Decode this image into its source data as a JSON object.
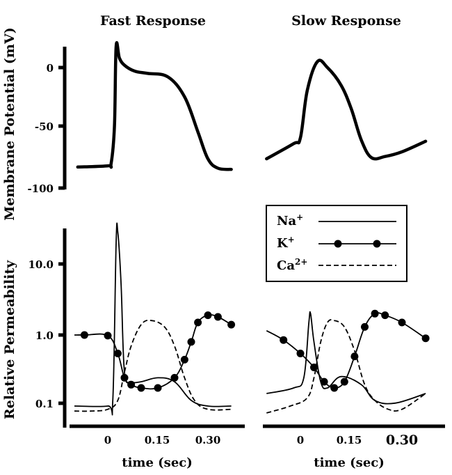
{
  "titles": {
    "left": "Fast Response",
    "right": "Slow Response"
  },
  "ylabels": {
    "top": "Membrane Potential (mV)",
    "bottom": "Relative Permeability"
  },
  "legend": {
    "na": "Na",
    "na_sup": "+",
    "k": "K",
    "k_sup": "+",
    "ca": "Ca",
    "ca_sup": "2+"
  },
  "chart_data": [
    {
      "type": "line",
      "title": "Fast Response",
      "ylabel": "Membrane Potential (mV)",
      "ylim": [
        -100,
        20
      ],
      "yticks": [
        "0",
        "-50",
        "-100"
      ],
      "series": [
        {
          "name": "Membrane Potential",
          "x": [
            -0.09,
            0.0,
            0.01,
            0.02,
            0.025,
            0.035,
            0.05,
            0.08,
            0.12,
            0.18,
            0.23,
            0.27,
            0.3,
            0.33,
            0.37
          ],
          "y": [
            -85,
            -84,
            -82,
            -50,
            18,
            8,
            2,
            -3,
            -5,
            -8,
            -25,
            -55,
            -78,
            -86,
            -87
          ]
        }
      ]
    },
    {
      "type": "line",
      "title": "Slow Response",
      "series": [
        {
          "name": "Membrane Potential",
          "x": [
            -0.1,
            -0.02,
            0.0,
            0.02,
            0.05,
            0.08,
            0.12,
            0.15,
            0.18,
            0.21,
            0.25,
            0.3,
            0.37
          ],
          "y": [
            -78,
            -65,
            -60,
            -20,
            5,
            0,
            -15,
            -35,
            -62,
            -77,
            -76,
            -72,
            -63
          ]
        }
      ]
    },
    {
      "type": "line",
      "title": "Fast Response",
      "ylabel": "Relative Permeability",
      "xlabel": "time (sec)",
      "ylim": [
        0.08,
        30
      ],
      "yticks": [
        "10.0",
        "1.0",
        "0.1"
      ],
      "xticks": [
        "0",
        "0.15",
        "0.30"
      ],
      "series": [
        {
          "name": "Na+",
          "x": [
            -0.1,
            0.0,
            0.015,
            0.025,
            0.03,
            0.04,
            0.05,
            0.07,
            0.1,
            0.15,
            0.2,
            0.25,
            0.3,
            0.37
          ],
          "y": [
            0.1,
            0.1,
            0.12,
            20,
            28,
            5,
            0.3,
            0.22,
            0.22,
            0.25,
            0.22,
            0.12,
            0.1,
            0.1
          ]
        },
        {
          "name": "K+",
          "x": [
            -0.1,
            -0.07,
            0.0,
            0.03,
            0.05,
            0.07,
            0.1,
            0.15,
            0.2,
            0.23,
            0.25,
            0.27,
            0.3,
            0.33,
            0.37
          ],
          "y": [
            1.0,
            1.0,
            0.98,
            0.55,
            0.25,
            0.2,
            0.18,
            0.18,
            0.25,
            0.45,
            0.8,
            1.5,
            1.9,
            1.8,
            1.4
          ]
        },
        {
          "name": "Ca2+",
          "x": [
            -0.1,
            -0.05,
            0.0,
            0.03,
            0.05,
            0.07,
            0.1,
            0.13,
            0.17,
            0.2,
            0.23,
            0.26,
            0.3,
            0.37
          ],
          "y": [
            0.085,
            0.085,
            0.09,
            0.12,
            0.3,
            0.7,
            1.4,
            1.6,
            1.3,
            0.7,
            0.25,
            0.12,
            0.09,
            0.09
          ]
        }
      ]
    },
    {
      "type": "line",
      "title": "Slow Response",
      "xlabel": "time (sec)",
      "xticks": [
        "0",
        "0.15",
        "0.30"
      ],
      "series": [
        {
          "name": "Na+",
          "x": [
            -0.1,
            -0.02,
            0.01,
            0.025,
            0.03,
            0.04,
            0.06,
            0.08,
            0.12,
            0.18,
            0.22,
            0.28,
            0.37
          ],
          "y": [
            0.15,
            0.18,
            0.25,
            1.5,
            2.0,
            0.8,
            0.22,
            0.18,
            0.26,
            0.2,
            0.12,
            0.11,
            0.15
          ]
        },
        {
          "name": "K+",
          "x": [
            -0.1,
            -0.05,
            0.0,
            0.04,
            0.07,
            0.1,
            0.13,
            0.16,
            0.19,
            0.22,
            0.25,
            0.3,
            0.37
          ],
          "y": [
            1.15,
            0.85,
            0.55,
            0.35,
            0.22,
            0.18,
            0.22,
            0.5,
            1.3,
            2.0,
            1.9,
            1.5,
            0.9
          ]
        },
        {
          "name": "Ca2+",
          "x": [
            -0.1,
            -0.03,
            0.02,
            0.04,
            0.06,
            0.08,
            0.1,
            0.13,
            0.16,
            0.19,
            0.22,
            0.26,
            0.3,
            0.37
          ],
          "y": [
            0.08,
            0.1,
            0.13,
            0.25,
            0.8,
            1.5,
            1.6,
            1.3,
            0.6,
            0.2,
            0.12,
            0.09,
            0.09,
            0.15
          ]
        }
      ]
    }
  ]
}
